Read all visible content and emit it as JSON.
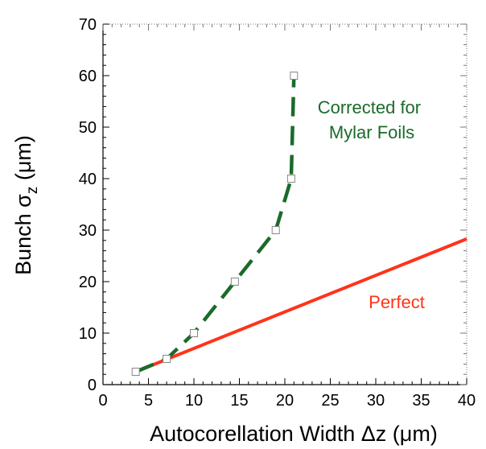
{
  "chart_data": {
    "type": "line",
    "xlabel": "Autocorellation Width Δz (μm)",
    "ylabel": "Bunch σz (μm)",
    "ylabel_parts": {
      "prefix": "Bunch σ",
      "sub": "z",
      "suffix": " (μm)"
    },
    "xlim": [
      0,
      40
    ],
    "ylim": [
      0,
      70
    ],
    "x_ticks": [
      0,
      5,
      10,
      15,
      20,
      25,
      30,
      35,
      40
    ],
    "y_ticks": [
      0,
      10,
      20,
      30,
      40,
      50,
      60,
      70
    ],
    "grid": false,
    "colors": {
      "corrected": "#1a6b2a",
      "perfect": "#ff3319"
    },
    "series": [
      {
        "name": "Corrected for Mylar Foils",
        "style": "dashed",
        "markers": "open-square",
        "points": [
          [
            3.6,
            2.5
          ],
          [
            7,
            5
          ],
          [
            10,
            10
          ],
          [
            14.5,
            20
          ],
          [
            19,
            30
          ],
          [
            20.7,
            40
          ],
          [
            21,
            60
          ]
        ]
      },
      {
        "name": "Perfect",
        "style": "solid",
        "points": [
          [
            3.6,
            2.5
          ],
          [
            40,
            28.3
          ]
        ]
      }
    ],
    "annotations": [
      {
        "lines": [
          "Corrected for",
          "Mylar Foils"
        ],
        "series": "Corrected for Mylar Foils"
      },
      {
        "lines": [
          "Perfect"
        ],
        "series": "Perfect"
      }
    ]
  }
}
